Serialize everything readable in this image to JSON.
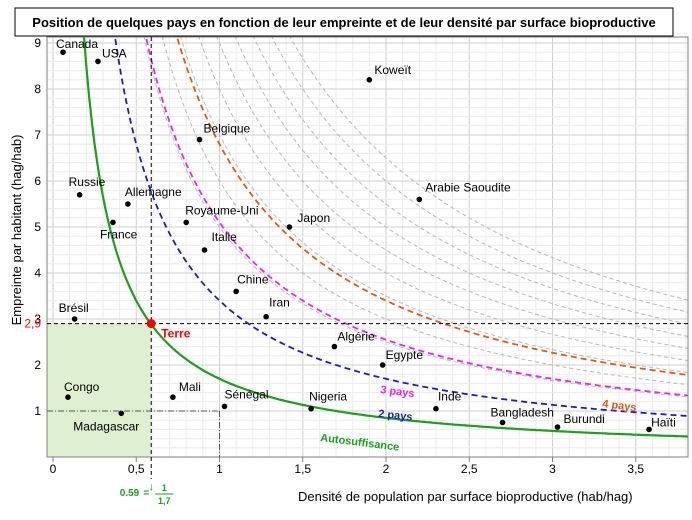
{
  "chart_data": {
    "type": "scatter",
    "title": "Position de quelques pays en fonction de leur empreinte et de leur densité par surface bioproductive",
    "xlabel": "Densité de population par surface bioproductive (hab/hag)",
    "ylabel": "Empreinte par habitant (hag/hab)",
    "xlim": [
      0,
      3.8
    ],
    "ylim": [
      0,
      9.3
    ],
    "xticks": [
      {
        "v": 0,
        "label": "0"
      },
      {
        "v": 0.5,
        "label": "0,5"
      },
      {
        "v": 1,
        "label": "1"
      },
      {
        "v": 1.5,
        "label": "1,5"
      },
      {
        "v": 2,
        "label": "2"
      },
      {
        "v": 2.5,
        "label": "2,5"
      },
      {
        "v": 3,
        "label": "3"
      },
      {
        "v": 3.5,
        "label": "3,5"
      }
    ],
    "yticks": [
      {
        "v": 1,
        "label": "1"
      },
      {
        "v": 2,
        "label": "2"
      },
      {
        "v": 3,
        "label": "3"
      },
      {
        "v": 4,
        "label": "4"
      },
      {
        "v": 5,
        "label": "5"
      },
      {
        "v": 6,
        "label": "6"
      },
      {
        "v": 7,
        "label": "7"
      },
      {
        "v": 8,
        "label": "8"
      },
      {
        "v": 9,
        "label": "9"
      }
    ],
    "grid": true,
    "points": [
      {
        "name": "Canada",
        "x": 0.06,
        "y": 8.8,
        "anchor": "start"
      },
      {
        "name": "USA",
        "x": 0.27,
        "y": 8.6,
        "anchor": "start"
      },
      {
        "name": "Koweït",
        "x": 1.9,
        "y": 8.2,
        "anchor": "start"
      },
      {
        "name": "Belgique",
        "x": 0.88,
        "y": 6.9,
        "anchor": "start"
      },
      {
        "name": "Arabie Saoudite",
        "x": 2.2,
        "y": 5.6,
        "anchor": "start"
      },
      {
        "name": "Russie",
        "x": 0.16,
        "y": 5.7,
        "anchor": "start"
      },
      {
        "name": "Allemagne",
        "x": 0.45,
        "y": 5.5,
        "anchor": "start"
      },
      {
        "name": "France",
        "x": 0.36,
        "y": 5.1,
        "anchor": "start"
      },
      {
        "name": "Royaume-Uni",
        "x": 0.8,
        "y": 5.1,
        "anchor": "start"
      },
      {
        "name": "Japon",
        "x": 1.42,
        "y": 5.0,
        "anchor": "start"
      },
      {
        "name": "Italie",
        "x": 0.91,
        "y": 4.5,
        "anchor": "start"
      },
      {
        "name": "Chine",
        "x": 1.1,
        "y": 3.6,
        "anchor": "start"
      },
      {
        "name": "Iran",
        "x": 1.28,
        "y": 3.05,
        "anchor": "start"
      },
      {
        "name": "Brésil",
        "x": 0.13,
        "y": 3.0,
        "anchor": "start"
      },
      {
        "name": "Algérie",
        "x": 1.69,
        "y": 2.4,
        "anchor": "start"
      },
      {
        "name": "Egypte",
        "x": 1.98,
        "y": 2.0,
        "anchor": "start"
      },
      {
        "name": "Congo",
        "x": 0.09,
        "y": 1.3,
        "anchor": "start"
      },
      {
        "name": "Mali",
        "x": 0.72,
        "y": 1.3,
        "anchor": "start"
      },
      {
        "name": "Sénégal",
        "x": 1.03,
        "y": 1.1,
        "anchor": "start"
      },
      {
        "name": "Nigeria",
        "x": 1.55,
        "y": 1.05,
        "anchor": "start"
      },
      {
        "name": "Inde",
        "x": 2.3,
        "y": 1.05,
        "anchor": "start"
      },
      {
        "name": "Madagascar",
        "x": 0.41,
        "y": 0.95,
        "anchor": "start"
      },
      {
        "name": "Bangladesh",
        "x": 2.7,
        "y": 0.75,
        "anchor": "start"
      },
      {
        "name": "Burundi",
        "x": 3.03,
        "y": 0.65,
        "anchor": "start"
      },
      {
        "name": "Haïti",
        "x": 3.58,
        "y": 0.6,
        "anchor": "start"
      }
    ],
    "earth": {
      "name": "Terre",
      "x": 0.59,
      "y": 2.9,
      "ylabel": "2,9",
      "xlabel_num": "0.59",
      "frac_num": "1",
      "frac_den": "1,7"
    },
    "curves": [
      {
        "name": "Autosuffisance",
        "k": 1,
        "color": "#1aa11a",
        "dash": ""
      },
      {
        "name": "2 pays",
        "k": 2,
        "color": "#1a1acc",
        "dash": "6 4"
      },
      {
        "name": "3 pays",
        "k": 3,
        "color": "#ee22ee",
        "dash": "6 4"
      },
      {
        "name": "4 pays",
        "k": 4,
        "color": "#e05a10",
        "dash": "6 4"
      }
    ],
    "colors": {
      "earth": "#ff0000",
      "selfsufficient_area": "#dff0d0",
      "grey_curves": "#b8b8b8"
    }
  }
}
